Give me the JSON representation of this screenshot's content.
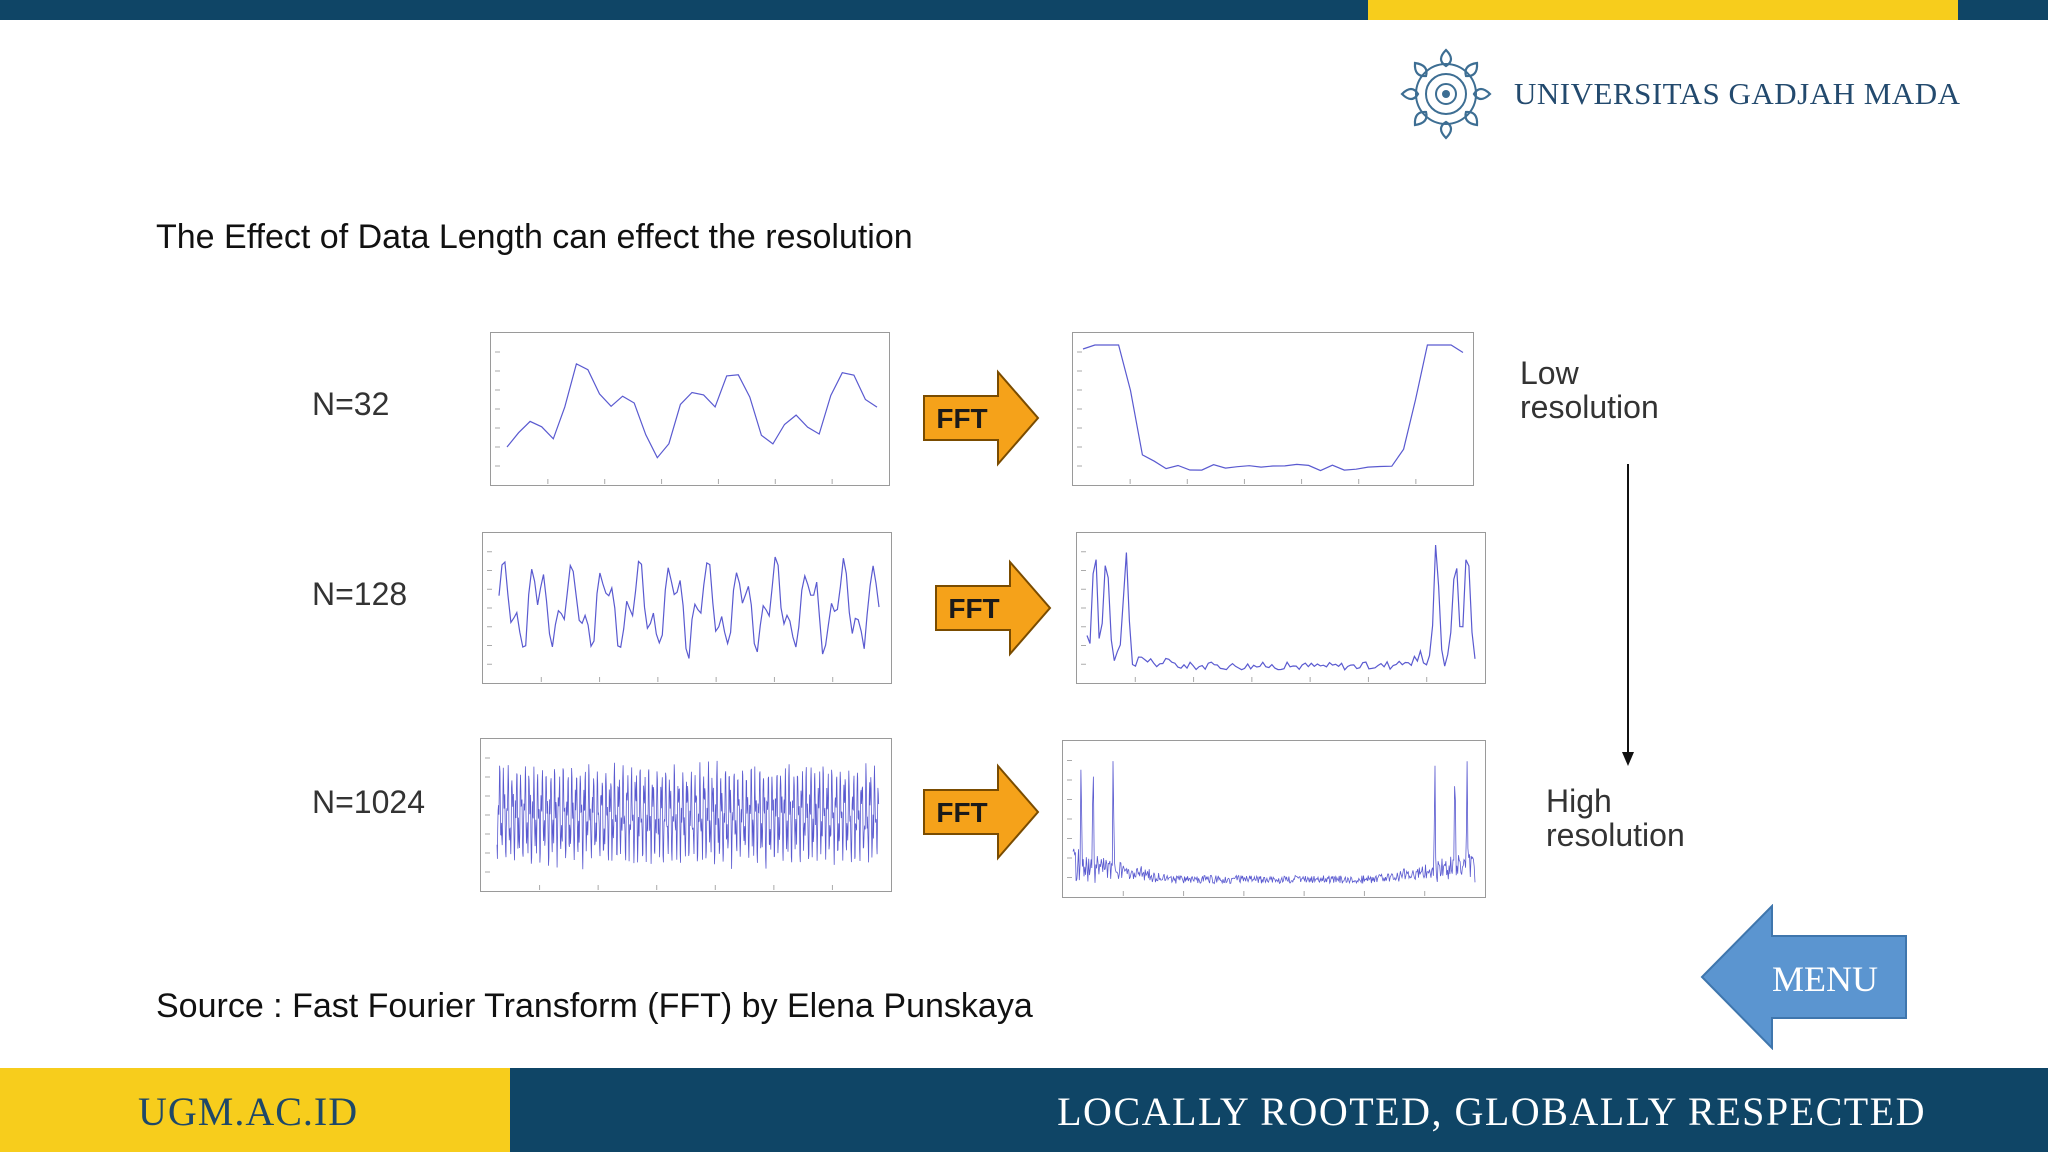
{
  "header": {
    "university_name": "UNIVERSITAS GADJAH MADA",
    "colors": {
      "navy": "#0f4566",
      "gold": "#f7cd1c"
    }
  },
  "slide": {
    "title": "The Effect of Data Length can effect the resolution",
    "source": "Source : Fast Fourier Transform (FFT) by Elena Punskaya"
  },
  "figure": {
    "rows": [
      {
        "n_label": "N=32",
        "arrow_label": "FFT"
      },
      {
        "n_label": "N=128",
        "arrow_label": "FFT"
      },
      {
        "n_label": "N=1024",
        "arrow_label": "FFT"
      }
    ],
    "resolution_top": [
      "Low",
      "resolution"
    ],
    "resolution_bottom": [
      "High",
      "resolution"
    ],
    "arrow_color": "#f5a21a"
  },
  "menu_button": {
    "label": "MENU",
    "color": "#5b95d0"
  },
  "footer": {
    "site": "UGM.AC.ID",
    "tagline": "LOCALLY ROOTED, GLOBALLY RESPECTED"
  }
}
